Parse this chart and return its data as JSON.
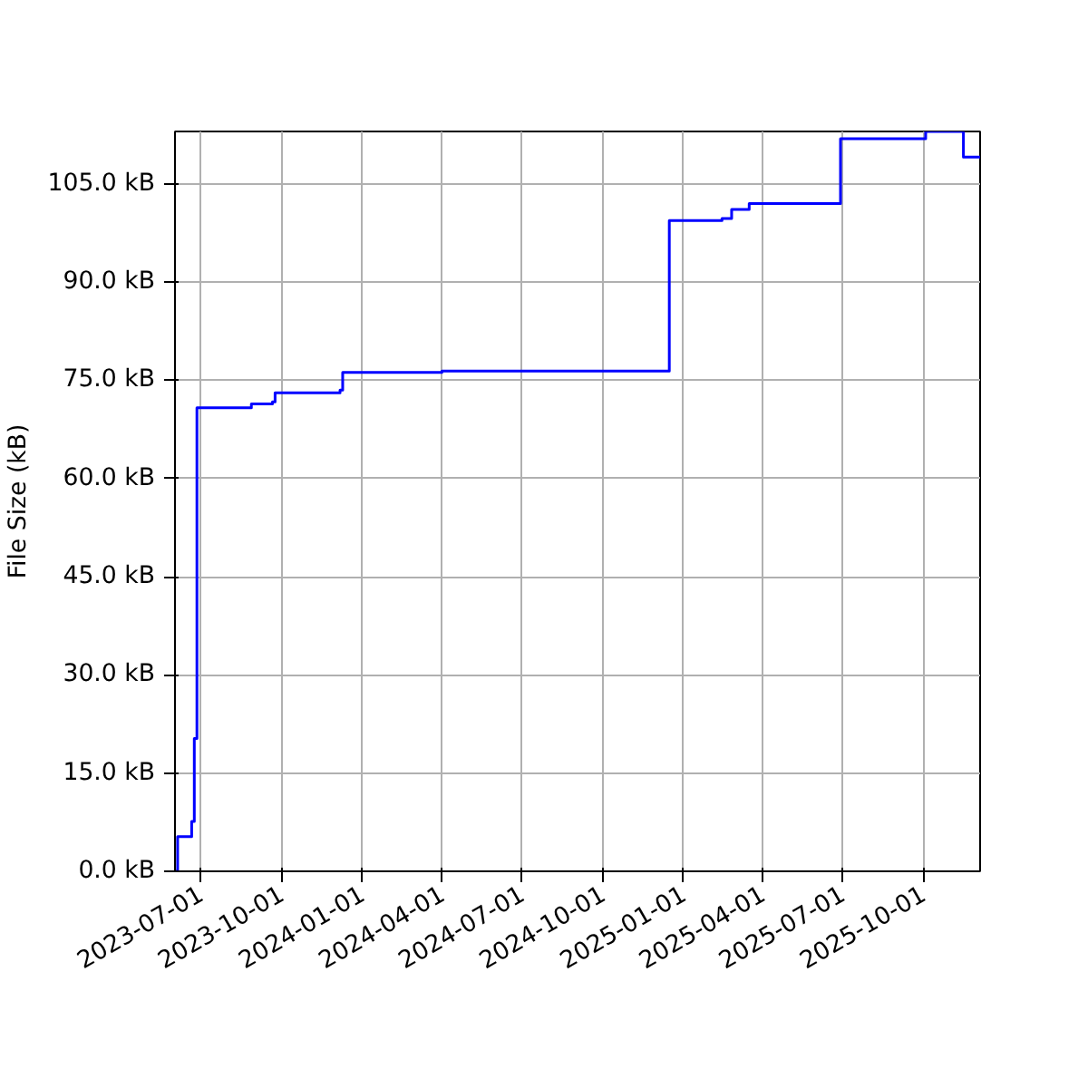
{
  "chart_data": {
    "type": "step",
    "ylabel": "File Size (kB)",
    "x": [
      "2023-06-03",
      "2023-06-05",
      "2023-06-21",
      "2023-06-24",
      "2023-06-27",
      "2023-08-28",
      "2023-09-21",
      "2023-09-24",
      "2023-12-07",
      "2023-12-10",
      "2024-04-01",
      "2024-12-16",
      "2025-02-14",
      "2025-02-25",
      "2025-03-17",
      "2025-06-29",
      "2025-10-04",
      "2025-11-16",
      "2025-12-05"
    ],
    "series": [
      {
        "color": "#0000ff",
        "values": [
          0,
          5.3,
          7.6,
          20.3,
          70.8,
          71.4,
          71.7,
          73.1,
          73.5,
          76.2,
          76.4,
          99.4,
          99.7,
          101.1,
          102.0,
          111.9,
          113.0,
          109.1,
          109.1
        ]
      }
    ],
    "xlim": [
      "2023-06-02",
      "2025-12-05"
    ],
    "xticks": [
      {
        "value": "2023-07-01",
        "label": "2023-07-01"
      },
      {
        "value": "2023-10-01",
        "label": "2023-10-01"
      },
      {
        "value": "2024-01-01",
        "label": "2024-01-01"
      },
      {
        "value": "2024-04-01",
        "label": "2024-04-01"
      },
      {
        "value": "2024-07-01",
        "label": "2024-07-01"
      },
      {
        "value": "2024-10-01",
        "label": "2024-10-01"
      },
      {
        "value": "2025-01-01",
        "label": "2025-01-01"
      },
      {
        "value": "2025-04-01",
        "label": "2025-04-01"
      },
      {
        "value": "2025-07-01",
        "label": "2025-07-01"
      },
      {
        "value": "2025-10-01",
        "label": "2025-10-01"
      }
    ],
    "ylim": [
      0,
      113
    ],
    "yticks": [
      {
        "value": 0,
        "label": "0.0 kB"
      },
      {
        "value": 15,
        "label": "15.0 kB"
      },
      {
        "value": 30,
        "label": "30.0 kB"
      },
      {
        "value": 45,
        "label": "45.0 kB"
      },
      {
        "value": 60,
        "label": "60.0 kB"
      },
      {
        "value": 75,
        "label": "75.0 kB"
      },
      {
        "value": 90,
        "label": "90.0 kB"
      },
      {
        "value": 105,
        "label": "105.0 kB"
      }
    ],
    "grid": true
  }
}
